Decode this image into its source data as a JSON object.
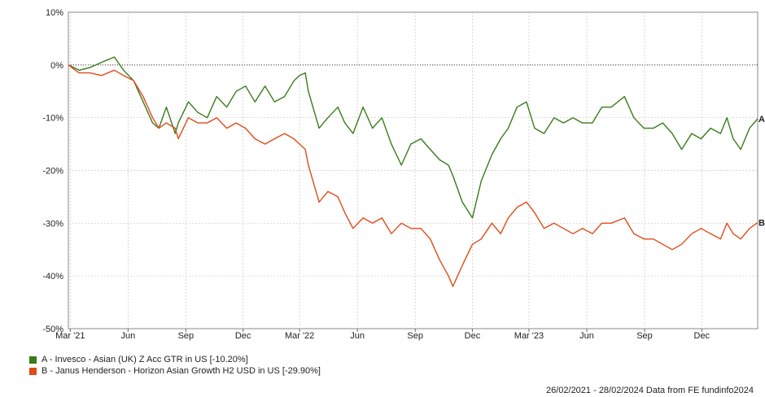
{
  "chart_data": {
    "type": "line",
    "y_unit": "%",
    "ylim": [
      -50,
      10
    ],
    "y_ticks": [
      "10%",
      "0%",
      "-10%",
      "-20%",
      "-30%",
      "-40%",
      "-50%"
    ],
    "x_ticks": [
      "Mar '21",
      "Jun",
      "Sep",
      "Dec",
      "Mar '22",
      "Jun",
      "Sep",
      "Dec",
      "Mar '23",
      "Jun",
      "Sep",
      "Dec"
    ],
    "grid": true,
    "legend_position": "bottom-left",
    "x": [
      "2021-02-26",
      "2021-03-15",
      "2021-04-01",
      "2021-04-20",
      "2021-05-10",
      "2021-05-25",
      "2021-06-10",
      "2021-06-25",
      "2021-07-10",
      "2021-07-20",
      "2021-08-01",
      "2021-08-15",
      "2021-08-20",
      "2021-09-05",
      "2021-09-20",
      "2021-10-05",
      "2021-10-20",
      "2021-11-05",
      "2021-11-20",
      "2021-12-05",
      "2021-12-20",
      "2022-01-05",
      "2022-01-20",
      "2022-02-05",
      "2022-02-20",
      "2022-03-01",
      "2022-03-10",
      "2022-03-15",
      "2022-04-01",
      "2022-04-15",
      "2022-05-01",
      "2022-05-12",
      "2022-05-25",
      "2022-06-10",
      "2022-06-25",
      "2022-07-10",
      "2022-07-25",
      "2022-08-10",
      "2022-08-25",
      "2022-09-10",
      "2022-09-25",
      "2022-10-10",
      "2022-10-24",
      "2022-10-31",
      "2022-11-15",
      "2022-12-01",
      "2022-12-15",
      "2023-01-01",
      "2023-01-15",
      "2023-01-27",
      "2023-02-10",
      "2023-02-25",
      "2023-03-10",
      "2023-03-25",
      "2023-04-10",
      "2023-04-25",
      "2023-05-10",
      "2023-05-25",
      "2023-06-10",
      "2023-06-25",
      "2023-07-10",
      "2023-07-31",
      "2023-08-15",
      "2023-08-31",
      "2023-09-15",
      "2023-09-30",
      "2023-10-15",
      "2023-10-30",
      "2023-11-15",
      "2023-11-30",
      "2023-12-15",
      "2023-12-31",
      "2024-01-10",
      "2024-01-20",
      "2024-02-01",
      "2024-02-15",
      "2024-02-28"
    ],
    "series": [
      {
        "label": "A",
        "name": "A - Invesco - Asian (UK) Z Acc GTR in US [-10.20%]",
        "color": "#3a7a1a",
        "values": [
          0,
          -1,
          -0.5,
          0.5,
          1.5,
          -1,
          -3,
          -7,
          -11,
          -12,
          -8,
          -13,
          -11,
          -7,
          -9,
          -10,
          -6,
          -8,
          -5,
          -4,
          -7,
          -4,
          -7,
          -6,
          -3,
          -2,
          -1.5,
          -5,
          -12,
          -10,
          -8,
          -11,
          -13,
          -8,
          -12,
          -10,
          -15,
          -19,
          -15,
          -14,
          -16,
          -18,
          -19,
          -21,
          -26,
          -29,
          -22,
          -17,
          -14,
          -12,
          -8,
          -7,
          -12,
          -13,
          -10,
          -11,
          -10,
          -11,
          -11,
          -8,
          -8,
          -6,
          -10,
          -12,
          -12,
          -11,
          -13,
          -16,
          -13,
          -14,
          -12,
          -13,
          -10,
          -14,
          -16,
          -12,
          -10.2
        ]
      },
      {
        "label": "B",
        "name": "B - Janus Henderson - Horizon Asian Growth H2 USD in US [-29.90%]",
        "color": "#e04a18",
        "values": [
          0,
          -1.5,
          -1.5,
          -2,
          -1,
          -2,
          -3,
          -6,
          -10,
          -12,
          -11,
          -12,
          -14,
          -10,
          -11,
          -11,
          -10,
          -12,
          -11,
          -12,
          -14,
          -15,
          -14,
          -13,
          -14,
          -15,
          -16,
          -19,
          -26,
          -24,
          -25,
          -28,
          -31,
          -29,
          -30,
          -29,
          -32,
          -30,
          -31,
          -31,
          -33,
          -37,
          -40,
          -42,
          -38,
          -34,
          -33,
          -30,
          -32,
          -29,
          -27,
          -26,
          -28,
          -31,
          -30,
          -31,
          -32,
          -31,
          -32,
          -30,
          -30,
          -29,
          -32,
          -33,
          -33,
          -34,
          -35,
          -34,
          -32,
          -31,
          -32,
          -33,
          -30,
          -32,
          -33,
          -31,
          -29.9
        ]
      }
    ]
  },
  "legend": [
    {
      "text": "A - Invesco - Asian (UK) Z Acc GTR in US [-10.20%]",
      "color": "#3a7a1a"
    },
    {
      "text": "B - Janus Henderson - Horizon Asian Growth H2 USD in US [-29.90%]",
      "color": "#e04a18"
    }
  ],
  "footer": "26/02/2021 - 28/02/2024 Data from FE fundinfo2024"
}
